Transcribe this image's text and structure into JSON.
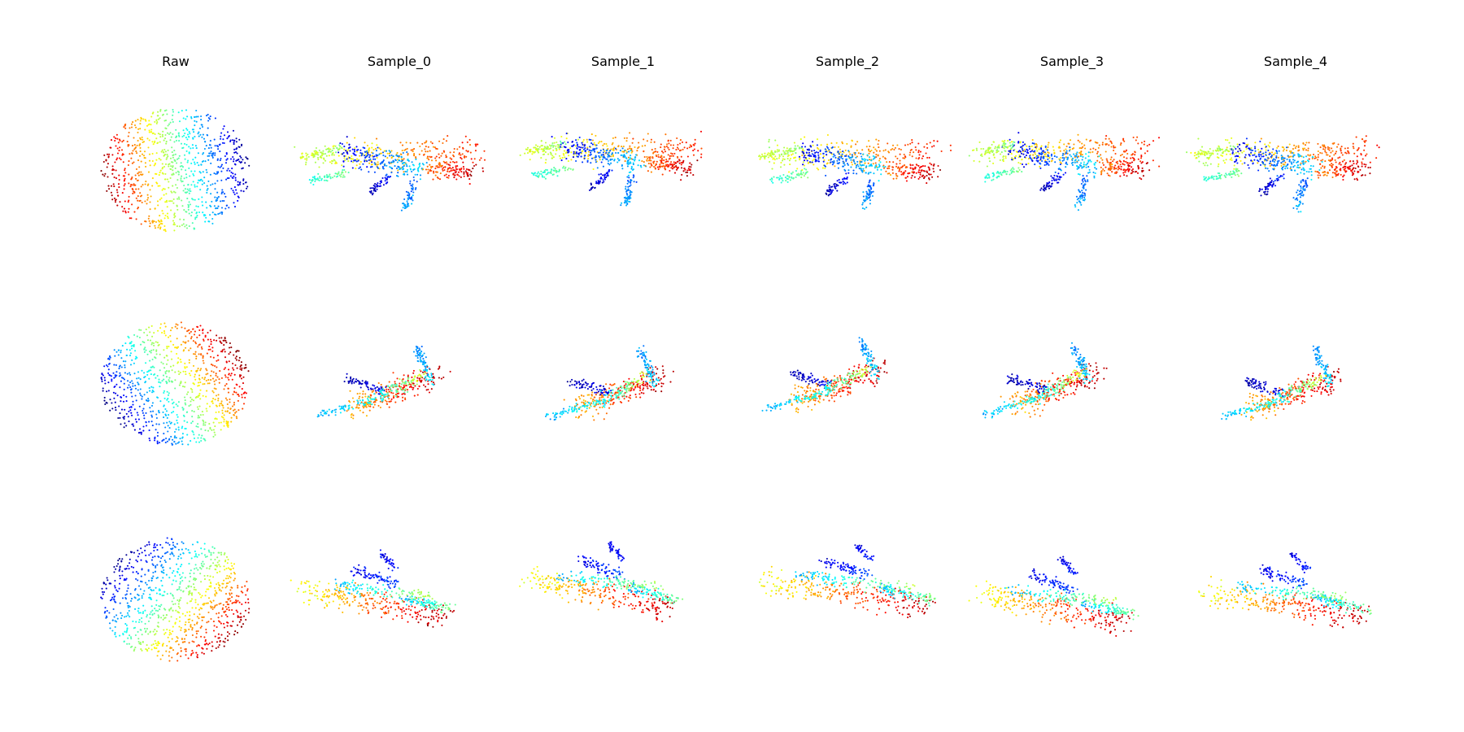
{
  "figure": {
    "columns": [
      {
        "title": "Raw"
      },
      {
        "title": "Sample_0"
      },
      {
        "title": "Sample_1"
      },
      {
        "title": "Sample_2"
      },
      {
        "title": "Sample_3"
      },
      {
        "title": "Sample_4"
      }
    ],
    "rows": 3,
    "colormap": "jet",
    "colormap_stops": [
      "#00007f",
      "#0000ff",
      "#007fff",
      "#00ffff",
      "#7fff7f",
      "#ffff00",
      "#ff7f00",
      "#ff0000",
      "#7f0000"
    ],
    "background": "#ffffff"
  }
}
